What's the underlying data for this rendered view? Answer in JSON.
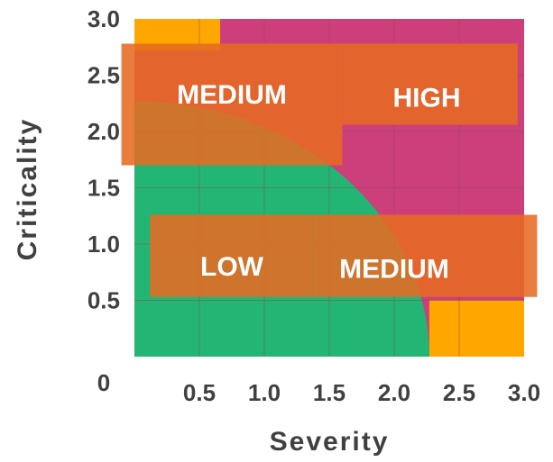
{
  "chart_data": {
    "type": "heatmap",
    "title": "",
    "xlabel": "Severity",
    "ylabel": "Criticality",
    "xlim": [
      0,
      3.0
    ],
    "ylim": [
      0,
      3.0
    ],
    "x_ticks": [
      "0.5",
      "1.0",
      "1.5",
      "2.0",
      "2.5",
      "3.0"
    ],
    "y_ticks": [
      "0.5",
      "1.0",
      "1.5",
      "2.0",
      "2.5",
      "3.0"
    ],
    "origin_label": "0",
    "grid": true,
    "zones": [
      {
        "name": "LOW",
        "color": "#22b573",
        "shape": "quarter-circle",
        "radius": 2.27
      },
      {
        "name": "MEDIUM",
        "color": "#ffa600",
        "x_range": [
          0,
          0.66
        ],
        "y_range": [
          2.72,
          3.0
        ]
      },
      {
        "name": "MEDIUM",
        "color": "#ffa600",
        "x_range": [
          2.27,
          3.0
        ],
        "y_range": [
          0,
          0.5
        ]
      },
      {
        "name": "HIGH",
        "color": "#cc3f7a",
        "region": "remainder"
      }
    ],
    "labels": [
      {
        "text": "MEDIUM",
        "x_range": [
          -0.1,
          1.6
        ],
        "y_range": [
          1.7,
          2.78
        ],
        "text_x": 0.75,
        "text_y": 2.25
      },
      {
        "text": "HIGH",
        "x_range": [
          1.6,
          2.95
        ],
        "y_range": [
          2.06,
          2.78
        ],
        "text_x": 2.25,
        "text_y": 2.22
      },
      {
        "text": "LOW",
        "x_range": [
          0.12,
          1.38
        ],
        "y_range": [
          0.53,
          1.26
        ],
        "text_x": 0.75,
        "text_y": 0.72
      },
      {
        "text": "MEDIUM",
        "x_range": [
          1.38,
          3.1
        ],
        "y_range": [
          0.53,
          1.26
        ],
        "text_x": 2.0,
        "text_y": 0.7
      }
    ],
    "label_box_color": "#e66b22"
  }
}
